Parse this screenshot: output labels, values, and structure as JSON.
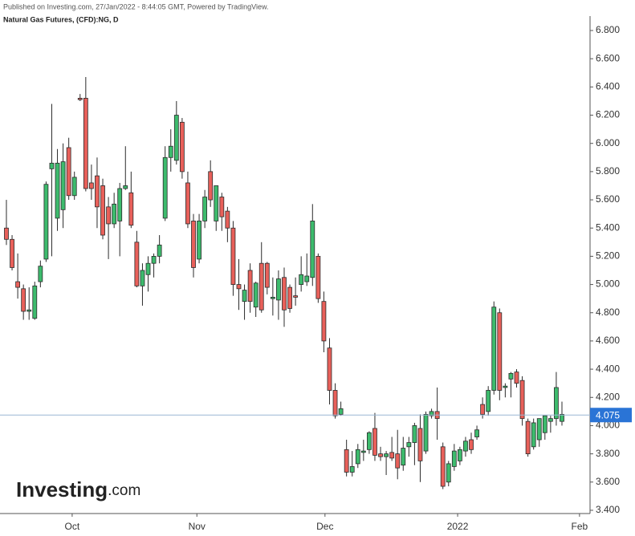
{
  "header": {
    "published": "Published on Investing.com, 27/Jan/2022 - 8:44:05 GMT, Powered by TradingView.",
    "instrument": "Natural Gas Futures, (CFD):NG, D"
  },
  "logo": {
    "brand": "Investing",
    "suffix": ".com"
  },
  "chart_data": {
    "type": "candlestick",
    "x": [
      0,
      1,
      2,
      3,
      4,
      5,
      6,
      7,
      8,
      9,
      10,
      11,
      12,
      13,
      14,
      15,
      16,
      17,
      18,
      19,
      20,
      21,
      22,
      23,
      24,
      25,
      26,
      27,
      28,
      29,
      30,
      31,
      32,
      33,
      34,
      35,
      36,
      37,
      38,
      39,
      40,
      41,
      42,
      43,
      44,
      45,
      46,
      47,
      48,
      49,
      50,
      51,
      52,
      53,
      54,
      55,
      56,
      57,
      58,
      59,
      60,
      61,
      62,
      63,
      64,
      65,
      66,
      67,
      68,
      69,
      70,
      71,
      72,
      73,
      74,
      75,
      76,
      77,
      78,
      79,
      80,
      81,
      82,
      83,
      84,
      85,
      86,
      87,
      88,
      89,
      90,
      91,
      92,
      93,
      94,
      95,
      96,
      97,
      98
    ],
    "open": [
      5.4,
      5.32,
      5.02,
      4.97,
      4.81,
      4.76,
      5.02,
      5.18,
      5.82,
      5.47,
      5.53,
      5.97,
      5.63,
      6.32,
      6.32,
      5.72,
      5.77,
      5.7,
      5.55,
      5.43,
      5.45,
      5.68,
      5.65,
      5.3,
      4.99,
      5.07,
      5.15,
      5.2,
      5.47,
      5.9,
      5.88,
      6.15,
      5.72,
      5.45,
      5.18,
      5.45,
      5.8,
      5.45,
      5.62,
      5.52,
      5.4,
      5.0,
      4.88,
      5.1,
      4.84,
      5.15,
      5.15,
      4.9,
      4.89,
      5.05,
      4.98,
      4.92,
      5.0,
      5.02,
      5.05,
      5.2,
      4.88,
      4.55,
      4.25,
      4.08,
      3.83,
      3.67,
      3.73,
      3.81,
      3.83,
      3.98,
      3.8,
      3.78,
      3.81,
      3.8,
      3.72,
      3.85,
      3.88,
      3.98,
      3.82,
      4.07,
      4.1,
      3.85,
      3.6,
      3.71,
      3.75,
      3.82,
      3.9,
      3.92,
      4.15,
      4.1,
      4.25,
      4.8,
      4.27,
      4.33,
      4.38,
      4.32,
      4.03,
      3.85,
      3.9,
      3.95,
      4.03,
      4.05,
      4.03
    ],
    "high": [
      5.6,
      5.35,
      5.22,
      5.0,
      4.98,
      5.02,
      5.17,
      5.73,
      6.28,
      5.96,
      6.0,
      6.04,
      5.8,
      6.35,
      6.47,
      5.85,
      5.9,
      5.75,
      5.62,
      5.65,
      5.72,
      5.98,
      5.8,
      5.38,
      5.15,
      5.2,
      5.22,
      5.35,
      5.98,
      6.1,
      6.3,
      6.18,
      5.8,
      5.5,
      5.5,
      5.67,
      5.88,
      5.7,
      5.65,
      5.55,
      5.45,
      5.18,
      5.0,
      5.15,
      5.02,
      5.3,
      5.16,
      5.05,
      5.1,
      5.12,
      5.0,
      5.05,
      5.2,
      5.22,
      5.57,
      5.22,
      4.95,
      4.62,
      4.3,
      4.17,
      3.9,
      3.82,
      3.87,
      3.9,
      3.96,
      4.09,
      3.85,
      3.82,
      3.92,
      3.97,
      3.92,
      3.92,
      4.02,
      4.08,
      4.1,
      4.12,
      4.27,
      3.88,
      3.75,
      3.87,
      3.85,
      3.92,
      3.95,
      4.0,
      4.2,
      4.28,
      4.88,
      4.83,
      4.3,
      4.38,
      4.4,
      4.35,
      4.05,
      4.05,
      4.03,
      4.05,
      4.07,
      4.38,
      4.17
    ],
    "low": [
      5.28,
      5.1,
      4.9,
      4.75,
      4.75,
      4.75,
      4.98,
      5.16,
      5.2,
      5.38,
      5.4,
      5.6,
      5.6,
      6.3,
      5.66,
      5.6,
      5.4,
      5.32,
      5.18,
      5.4,
      5.2,
      5.67,
      5.4,
      4.98,
      4.85,
      4.95,
      5.05,
      5.15,
      5.45,
      5.8,
      5.85,
      5.75,
      5.4,
      5.05,
      5.15,
      5.4,
      5.55,
      5.38,
      5.38,
      5.3,
      4.92,
      4.82,
      4.75,
      4.8,
      4.77,
      4.8,
      4.93,
      4.78,
      4.75,
      4.7,
      4.8,
      4.85,
      4.95,
      4.99,
      4.99,
      4.87,
      4.52,
      4.15,
      4.05,
      4.07,
      3.64,
      3.64,
      3.7,
      3.75,
      3.8,
      3.75,
      3.75,
      3.65,
      3.75,
      3.62,
      3.68,
      3.78,
      3.72,
      3.6,
      3.8,
      4.05,
      3.9,
      3.55,
      3.57,
      3.68,
      3.72,
      3.78,
      3.8,
      3.9,
      4.05,
      4.07,
      4.22,
      4.18,
      4.2,
      4.2,
      4.27,
      4.0,
      3.78,
      3.83,
      3.85,
      3.9,
      3.95,
      4.0,
      4.0
    ],
    "close": [
      5.32,
      5.12,
      4.98,
      4.81,
      4.82,
      4.99,
      5.13,
      5.71,
      5.86,
      5.86,
      5.87,
      5.63,
      5.76,
      6.31,
      5.68,
      5.68,
      5.55,
      5.35,
      5.43,
      5.57,
      5.68,
      5.7,
      5.42,
      4.99,
      5.1,
      5.15,
      5.2,
      5.28,
      5.9,
      5.98,
      6.2,
      5.8,
      5.43,
      5.12,
      5.45,
      5.62,
      5.6,
      5.7,
      5.48,
      5.4,
      5.0,
      4.97,
      4.96,
      4.88,
      5.01,
      4.82,
      4.98,
      4.91,
      5.04,
      4.82,
      4.83,
      4.91,
      5.07,
      5.06,
      5.45,
      4.9,
      4.6,
      4.25,
      4.07,
      4.12,
      3.67,
      3.71,
      3.83,
      3.82,
      3.95,
      3.79,
      3.78,
      3.8,
      3.77,
      3.7,
      3.84,
      3.88,
      4.0,
      3.75,
      4.08,
      4.1,
      4.05,
      3.57,
      3.73,
      3.82,
      3.83,
      3.89,
      3.83,
      3.97,
      4.08,
      4.25,
      4.84,
      4.25,
      4.28,
      4.37,
      4.3,
      4.05,
      3.8,
      4.02,
      4.05,
      4.07,
      4.05,
      4.27,
      4.08
    ],
    "up_color": "#3dbb6d",
    "down_color": "#e8605a",
    "outline_color": "#2b2b2b",
    "xlim": [
      -1.13,
      102.25
    ],
    "xticks": [
      {
        "value": 11.6,
        "label": "Oct"
      },
      {
        "value": 33.6,
        "label": "Nov"
      },
      {
        "value": 56.2,
        "label": "Dec"
      },
      {
        "value": 79.6,
        "label": "2022"
      },
      {
        "value": 101.1,
        "label": "Feb"
      }
    ],
    "ylim": [
      3.377,
      6.874
    ],
    "yticks": [
      {
        "value": 3.4,
        "label": "3.400"
      },
      {
        "value": 3.6,
        "label": "3.600"
      },
      {
        "value": 3.8,
        "label": "3.800"
      },
      {
        "value": 4.0,
        "label": "4.000"
      },
      {
        "value": 4.2,
        "label": "4.200"
      },
      {
        "value": 4.4,
        "label": "4.400"
      },
      {
        "value": 4.6,
        "label": "4.600"
      },
      {
        "value": 4.8,
        "label": "4.800"
      },
      {
        "value": 5.0,
        "label": "5.000"
      },
      {
        "value": 5.2,
        "label": "5.200"
      },
      {
        "value": 5.4,
        "label": "5.400"
      },
      {
        "value": 5.6,
        "label": "5.600"
      },
      {
        "value": 5.8,
        "label": "5.800"
      },
      {
        "value": 6.0,
        "label": "6.000"
      },
      {
        "value": 6.2,
        "label": "6.200"
      },
      {
        "value": 6.4,
        "label": "6.400"
      },
      {
        "value": 6.6,
        "label": "6.600"
      },
      {
        "value": 6.8,
        "label": "6.800"
      }
    ],
    "last_price": 4.075,
    "last_price_label": "4.075",
    "last_price_color": "#2a74d6"
  }
}
